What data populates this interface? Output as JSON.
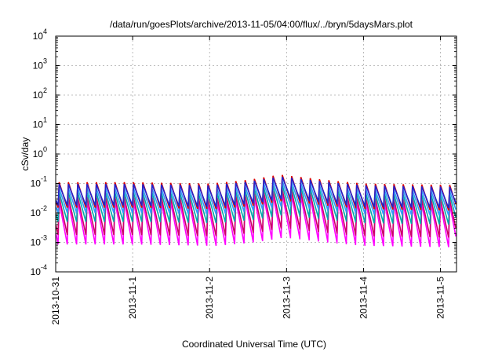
{
  "chart_data": {
    "type": "line",
    "title": "/data/run/goesPlots/archive/2013-11-05/04:00/flux/../bryn/5daysMars.plot",
    "xlabel": "Coordinated Universal Time (UTC)",
    "ylabel": "cSv/day",
    "yscale": "log",
    "ylim": [
      0.0001,
      10000
    ],
    "xlim": [
      "2013-10-31T00:00",
      "2013-11-05T05:00"
    ],
    "x_tick_labels": [
      "2013-10-31",
      "2013-11-1",
      "2013-11-2",
      "2013-11-3",
      "2013-11-4",
      "2013-11-5"
    ],
    "y_ticks": [
      {
        "base": "10",
        "exp": "-4",
        "value": 0.0001
      },
      {
        "base": "10",
        "exp": "-3",
        "value": 0.001
      },
      {
        "base": "10",
        "exp": "-2",
        "value": 0.01
      },
      {
        "base": "10",
        "exp": "-1",
        "value": 0.1
      },
      {
        "base": "10",
        "exp": "0",
        "value": 1
      },
      {
        "base": "10",
        "exp": "1",
        "value": 10
      },
      {
        "base": "10",
        "exp": "2",
        "value": 100
      },
      {
        "base": "10",
        "exp": "3",
        "value": 1000
      },
      {
        "base": "10",
        "exp": "4",
        "value": 10000
      }
    ],
    "grid": true,
    "period_hours": 2.9,
    "sawtooth_peak_envelope": [
      {
        "t": "2013-10-31T00:00",
        "v": 0.1
      },
      {
        "t": "2013-11-01T00:00",
        "v": 0.1
      },
      {
        "t": "2013-11-02T00:00",
        "v": 0.09
      },
      {
        "t": "2013-11-02T12:00",
        "v": 0.12
      },
      {
        "t": "2013-11-02T22:00",
        "v": 0.18
      },
      {
        "t": "2013-11-03T12:00",
        "v": 0.12
      },
      {
        "t": "2013-11-04T00:00",
        "v": 0.09
      },
      {
        "t": "2013-11-05T05:00",
        "v": 0.08
      }
    ],
    "series": [
      {
        "color": "#ff00ff",
        "peak_factor": 0.25,
        "trough_factor": 0.0085
      },
      {
        "color": "#cc0066",
        "peak_factor": 0.35,
        "trough_factor": 0.018
      },
      {
        "color": "#00aaaa",
        "peak_factor": 0.5,
        "trough_factor": 0.05
      },
      {
        "color": "#3399ff",
        "peak_factor": 0.7,
        "trough_factor": 0.1
      },
      {
        "color": "#dd0000",
        "peak_factor": 1.1,
        "trough_factor": 0.15
      },
      {
        "color": "#2222cc",
        "peak_factor": 0.95,
        "trough_factor": 0.18
      }
    ]
  }
}
